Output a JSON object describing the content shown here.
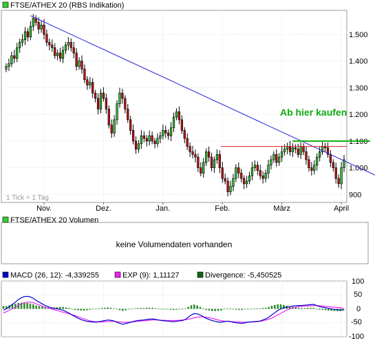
{
  "price_panel": {
    "legend_label": "FTSE/ATHEX 20 (RBS Indikation)",
    "legend_color": "#33cc33",
    "tick_note": "1 Tick = 1 Tag",
    "annotation": "Ab hier kaufen",
    "annotation_color": "#11aa11"
  },
  "volume_panel": {
    "legend_label": "FTSE/ATHEX 20 Volumen",
    "legend_color": "#33cc33",
    "message": "keine Volumendaten vorhanden"
  },
  "macd_panel": {
    "legend": [
      {
        "label": "MACD (26, 12): -4,339255",
        "color": "#0000cc"
      },
      {
        "label": "EXP (9): 1,11127",
        "color": "#ee22ee"
      },
      {
        "label": "Divergence: -5,450525",
        "color": "#116611"
      }
    ],
    "y_ticks": [
      "100",
      "50",
      "0",
      "-50",
      "-100"
    ]
  },
  "chart_data": {
    "type": "candlestick",
    "y_ticks": [
      "1.500",
      "1.400",
      "1.300",
      "1.200",
      "1.100",
      "1.000",
      "900"
    ],
    "ylim": [
      870,
      1590
    ],
    "x_ticks": [
      "Nov.",
      "Dez.",
      "Jan.",
      "Feb.",
      "März",
      "April"
    ],
    "x_tick_index": [
      14,
      36,
      58,
      80,
      102,
      124
    ],
    "closes": [
      1380,
      1390,
      1420,
      1410,
      1450,
      1470,
      1480,
      1510,
      1490,
      1530,
      1560,
      1545,
      1520,
      1535,
      1500,
      1470,
      1460,
      1450,
      1420,
      1430,
      1410,
      1440,
      1460,
      1470,
      1450,
      1430,
      1380,
      1400,
      1370,
      1330,
      1310,
      1320,
      1280,
      1260,
      1220,
      1280,
      1260,
      1220,
      1160,
      1130,
      1180,
      1240,
      1280,
      1260,
      1220,
      1180,
      1140,
      1100,
      1070,
      1090,
      1120,
      1110,
      1100,
      1120,
      1100,
      1090,
      1110,
      1120,
      1140,
      1130,
      1120,
      1150,
      1190,
      1210,
      1180,
      1140,
      1110,
      1080,
      1060,
      1050,
      1040,
      1000,
      980,
      1020,
      1060,
      1040,
      1000,
      1030,
      1050,
      1000,
      960,
      950,
      910,
      930,
      960,
      1000,
      980,
      960,
      940,
      950,
      970,
      1000,
      1010,
      990,
      970,
      960,
      980,
      1010,
      1030,
      1050,
      1020,
      1040,
      1060,
      1070,
      1080,
      1060,
      1075,
      1070,
      1050,
      1080,
      1060,
      1030,
      1000,
      990,
      1010,
      1040,
      1060,
      1080,
      1075,
      1050,
      1020,
      1000,
      960,
      940,
      1000,
      1030
    ],
    "trendline_down": {
      "from": [
        9,
        1570
      ],
      "to": [
        143,
        918
      ]
    },
    "resistance_red": {
      "from": [
        83,
        1080
      ],
      "to": [
        148,
        1080
      ]
    },
    "buy_line_green": {
      "from": [
        109,
        1100
      ],
      "to": [
        148,
        1100
      ]
    },
    "macd": {
      "ylim": [
        -100,
        100
      ],
      "macd": [
        -5,
        0,
        8,
        16,
        24,
        33,
        40,
        44,
        45,
        43,
        38,
        30,
        24,
        18,
        12,
        8,
        4,
        2,
        0,
        -2,
        -5,
        -10,
        -15,
        -22,
        -28,
        -33,
        -38,
        -42,
        -45,
        -46,
        -47,
        -48,
        -46,
        -44,
        -42,
        -40,
        -41,
        -43,
        -48,
        -52,
        -55,
        -53,
        -50,
        -47,
        -44,
        -42,
        -41,
        -40,
        -38,
        -37,
        -36,
        -38,
        -40,
        -42,
        -43,
        -44,
        -45,
        -46,
        -45,
        -43,
        -42,
        -38,
        -30,
        -22,
        -17,
        -18,
        -22,
        -28,
        -34,
        -38,
        -42,
        -45,
        -47,
        -48,
        -46,
        -44,
        -45,
        -48,
        -50,
        -51,
        -52,
        -50,
        -48,
        -47,
        -46,
        -45,
        -44,
        -40,
        -36,
        -30,
        -22,
        -14,
        -6,
        0,
        4,
        6,
        8,
        10,
        11,
        12,
        12,
        13,
        14,
        15,
        16,
        12,
        8,
        6,
        4,
        2,
        0,
        -2,
        -3,
        -4,
        -4
      ],
      "signal": [
        -15,
        -10,
        -5,
        0,
        6,
        12,
        18,
        22,
        24,
        24,
        22,
        18,
        14,
        10,
        6,
        3,
        0,
        -3,
        -6,
        -9,
        -12,
        -15,
        -18,
        -21,
        -24,
        -28,
        -32,
        -36,
        -40,
        -43,
        -45,
        -46,
        -47,
        -47,
        -46,
        -45,
        -45,
        -45,
        -46,
        -47,
        -48,
        -48,
        -48,
        -47,
        -46,
        -45,
        -44,
        -43,
        -42,
        -41,
        -40,
        -40,
        -40,
        -41,
        -41,
        -42,
        -42,
        -42,
        -42,
        -41,
        -40,
        -39,
        -37,
        -35,
        -32,
        -30,
        -29,
        -29,
        -30,
        -32,
        -34,
        -37,
        -40,
        -42,
        -44,
        -45,
        -46,
        -46,
        -47,
        -47,
        -48,
        -48,
        -48,
        -47,
        -47,
        -46,
        -45,
        -43,
        -40,
        -37,
        -33,
        -28,
        -22,
        -16,
        -10,
        -5,
        0,
        3,
        6,
        8,
        9,
        10,
        10,
        11,
        12,
        12,
        11,
        10,
        9,
        8,
        7,
        6,
        5,
        4,
        2
      ]
    }
  }
}
